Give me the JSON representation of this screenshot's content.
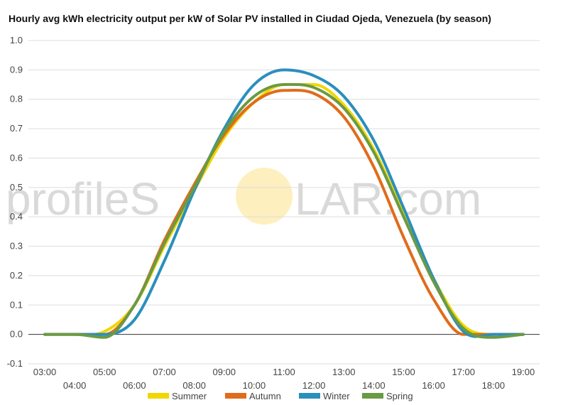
{
  "chart_data": {
    "type": "line",
    "title": "Hourly avg kWh electricity output per kW of Solar PV installed in Ciudad Ojeda, Venezuela (by season)",
    "watermark": {
      "left": "profileS",
      "right": "LAR.com",
      "sun_color": "#fde9a8"
    },
    "ylim": [
      -0.1,
      1.0
    ],
    "y_ticks": [
      "-0.1",
      "0.0",
      "0.1",
      "0.2",
      "0.3",
      "0.4",
      "0.5",
      "0.6",
      "0.7",
      "0.8",
      "0.9",
      "1.0"
    ],
    "x": [
      "03:00",
      "04:00",
      "05:00",
      "06:00",
      "07:00",
      "08:00",
      "09:00",
      "10:00",
      "11:00",
      "12:00",
      "13:00",
      "14:00",
      "15:00",
      "16:00",
      "17:00",
      "18:00",
      "19:00"
    ],
    "grid": true,
    "legend_position": "bottom",
    "series": [
      {
        "name": "Summer",
        "color": "#f2d600",
        "values": [
          0.0,
          0.0,
          0.01,
          0.1,
          0.3,
          0.49,
          0.67,
          0.79,
          0.85,
          0.85,
          0.78,
          0.63,
          0.41,
          0.19,
          0.03,
          0.0,
          0.0
        ]
      },
      {
        "name": "Autumn",
        "color": "#e06c1a",
        "values": [
          0.0,
          0.0,
          0.0,
          0.1,
          0.32,
          0.51,
          0.68,
          0.79,
          0.83,
          0.82,
          0.74,
          0.57,
          0.33,
          0.12,
          0.0,
          0.0,
          0.0
        ]
      },
      {
        "name": "Winter",
        "color": "#2a8fbd",
        "values": [
          0.0,
          0.0,
          0.0,
          0.05,
          0.25,
          0.49,
          0.7,
          0.85,
          0.9,
          0.88,
          0.81,
          0.66,
          0.43,
          0.19,
          0.01,
          0.0,
          0.0
        ]
      },
      {
        "name": "Spring",
        "color": "#6a9a44",
        "values": [
          0.0,
          0.0,
          -0.01,
          0.1,
          0.31,
          0.5,
          0.69,
          0.81,
          0.85,
          0.84,
          0.77,
          0.62,
          0.4,
          0.18,
          0.02,
          -0.01,
          0.0
        ]
      }
    ]
  }
}
